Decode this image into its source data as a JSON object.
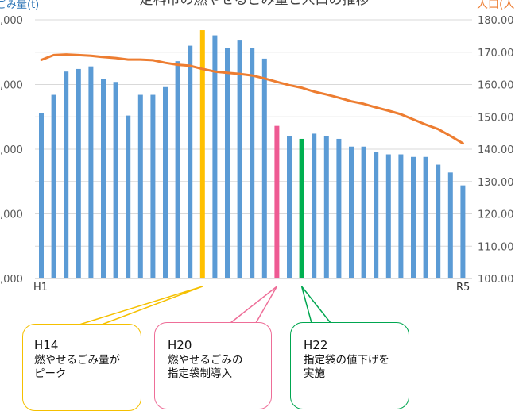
{
  "chart_data": {
    "type": "bar+line",
    "title": "定科市の燃やせるごみ量と人口の推移",
    "left_axis_label": "ごみ量(t)",
    "right_axis_label": "人口(人)",
    "left_axis_ticks": [
      ",000",
      ",000",
      ",000",
      ",000",
      ",000"
    ],
    "right_axis_ticks": [
      "100.00",
      "110.00",
      "120.00",
      "130.00",
      "140.00",
      "150.00",
      "160.00",
      "170.00",
      "180.00"
    ],
    "right_ylim": [
      100,
      180
    ],
    "x_start_label": "H1",
    "x_end_label": "R5",
    "bar_series": {
      "values_pct_of_axis": [
        64,
        71,
        80,
        81,
        82,
        77,
        76,
        63,
        71,
        71,
        74,
        84,
        90,
        96,
        94,
        89,
        92,
        89,
        85,
        59,
        55,
        54,
        56,
        55,
        54,
        51,
        51,
        49,
        48,
        48,
        47,
        47,
        44,
        41,
        36
      ],
      "colors": {
        "default": "#5b9bd5",
        "13": "#ffc000",
        "19": "#ee5a93",
        "21": "#00b050"
      }
    },
    "line_series": {
      "color": "#ed7d31",
      "values": [
        167.6,
        169.1,
        169.3,
        169.1,
        168.9,
        168.5,
        168.2,
        167.7,
        167.7,
        167.5,
        166.7,
        166.1,
        165.8,
        164.8,
        164.0,
        163.6,
        163.3,
        162.8,
        161.9,
        160.8,
        159.8,
        159.0,
        157.8,
        156.9,
        155.9,
        154.8,
        154.0,
        152.9,
        151.9,
        150.8,
        149.2,
        147.6,
        146.2,
        144.1,
        141.8
      ]
    },
    "grid": true,
    "legend": "none"
  },
  "callouts": {
    "h14": {
      "title": "H14",
      "body": "燃やせるごみ量が\nピーク",
      "color": "#f5c000"
    },
    "h20": {
      "title": "H20",
      "body": "燃やせるごみの\n指定袋制導入",
      "color": "#ee6e98"
    },
    "h22": {
      "title": "H22",
      "body": "指定袋の値下げを\n実施",
      "color": "#00a650"
    }
  }
}
